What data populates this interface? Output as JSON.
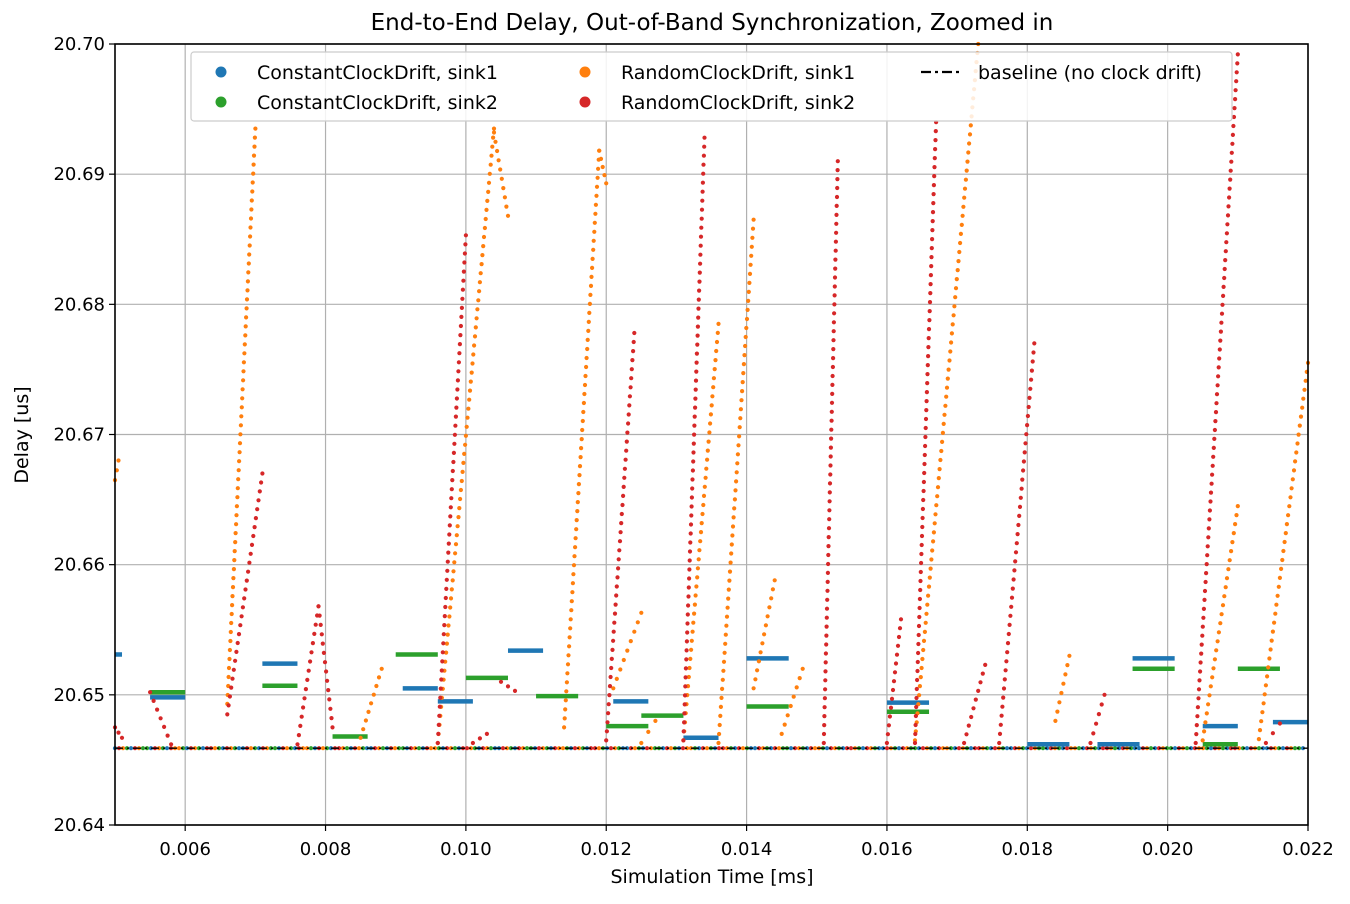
{
  "chart_data": {
    "type": "scatter",
    "title": "End-to-End Delay, Out-of-Band Synchronization, Zoomed in",
    "xlabel": "Simulation Time [ms]",
    "ylabel": "Delay [us]",
    "xlim": [
      0.005,
      0.022
    ],
    "ylim": [
      20.64,
      20.7
    ],
    "xticks": [
      "0.006",
      "0.008",
      "0.010",
      "0.012",
      "0.014",
      "0.016",
      "0.018",
      "0.020",
      "0.022"
    ],
    "yticks": [
      "20.64",
      "20.65",
      "20.66",
      "20.67",
      "20.68",
      "20.69",
      "20.70"
    ],
    "grid": true,
    "legend_position": "top",
    "baseline": {
      "name": "baseline (no clock drift)",
      "color": "#000000",
      "style": "dash-dot",
      "y": 20.6459
    },
    "series": [
      {
        "name": "ConstantClockDrift, sink1",
        "color": "#1f77b4",
        "segments": [
          {
            "x0": 0.005,
            "x1": 0.0051,
            "y": 20.6531
          },
          {
            "x0": 0.0055,
            "x1": 0.006,
            "y": 20.6498
          },
          {
            "x0": 0.0071,
            "x1": 0.0076,
            "y": 20.6524
          },
          {
            "x0": 0.0091,
            "x1": 0.0096,
            "y": 20.6505
          },
          {
            "x0": 0.0096,
            "x1": 0.0101,
            "y": 20.6495
          },
          {
            "x0": 0.0106,
            "x1": 0.0111,
            "y": 20.6534
          },
          {
            "x0": 0.0121,
            "x1": 0.0126,
            "y": 20.6495
          },
          {
            "x0": 0.0131,
            "x1": 0.0136,
            "y": 20.6467
          },
          {
            "x0": 0.014,
            "x1": 0.0146,
            "y": 20.6528
          },
          {
            "x0": 0.016,
            "x1": 0.0166,
            "y": 20.6494
          },
          {
            "x0": 0.018,
            "x1": 0.0186,
            "y": 20.6462
          },
          {
            "x0": 0.019,
            "x1": 0.0196,
            "y": 20.6462
          },
          {
            "x0": 0.0195,
            "x1": 0.0201,
            "y": 20.6528
          },
          {
            "x0": 0.0205,
            "x1": 0.021,
            "y": 20.6476
          },
          {
            "x0": 0.0215,
            "x1": 0.022,
            "y": 20.6479
          }
        ]
      },
      {
        "name": "ConstantClockDrift, sink2",
        "color": "#2ca02c",
        "segments": [
          {
            "x0": 0.0055,
            "x1": 0.006,
            "y": 20.6502
          },
          {
            "x0": 0.0071,
            "x1": 0.0076,
            "y": 20.6507
          },
          {
            "x0": 0.0081,
            "x1": 0.0086,
            "y": 20.6468
          },
          {
            "x0": 0.009,
            "x1": 0.0096,
            "y": 20.6531
          },
          {
            "x0": 0.01,
            "x1": 0.0106,
            "y": 20.6513
          },
          {
            "x0": 0.011,
            "x1": 0.0116,
            "y": 20.6499
          },
          {
            "x0": 0.012,
            "x1": 0.0126,
            "y": 20.6476
          },
          {
            "x0": 0.0125,
            "x1": 0.0131,
            "y": 20.6484
          },
          {
            "x0": 0.014,
            "x1": 0.0146,
            "y": 20.6491
          },
          {
            "x0": 0.016,
            "x1": 0.0166,
            "y": 20.6487
          },
          {
            "x0": 0.0195,
            "x1": 0.0201,
            "y": 20.652
          },
          {
            "x0": 0.0205,
            "x1": 0.021,
            "y": 20.6462
          },
          {
            "x0": 0.021,
            "x1": 0.0216,
            "y": 20.652
          }
        ]
      },
      {
        "name": "RandomClockDrift, sink1",
        "color": "#ff7f0e",
        "bursts": [
          {
            "x": [
              0.005,
              0.00505
            ],
            "y": [
              20.6665,
              20.668
            ]
          },
          {
            "x": [
              0.0066,
              0.007
            ],
            "y": [
              20.6493,
              20.6935
            ]
          },
          {
            "x": [
              0.0085,
              0.0088
            ],
            "y": [
              20.6467,
              20.652
            ]
          },
          {
            "x": [
              0.0096,
              0.0104
            ],
            "y": [
              20.6463,
              20.6935
            ]
          },
          {
            "x": [
              0.0104,
              0.0106
            ],
            "y": [
              20.6932,
              20.6868
            ]
          },
          {
            "x": [
              0.0114,
              0.0119
            ],
            "y": [
              20.6475,
              20.6918
            ]
          },
          {
            "x": [
              0.0119,
              0.012
            ],
            "y": [
              20.6918,
              20.6893
            ]
          },
          {
            "x": [
              0.0121,
              0.0125
            ],
            "y": [
              20.6505,
              20.6563
            ]
          },
          {
            "x": [
              0.0125,
              0.0127
            ],
            "y": [
              20.6463,
              20.648
            ]
          },
          {
            "x": [
              0.0131,
              0.0136
            ],
            "y": [
              20.6465,
              20.6785
            ]
          },
          {
            "x": [
              0.0136,
              0.0141
            ],
            "y": [
              20.6463,
              20.6865
            ]
          },
          {
            "x": [
              0.0141,
              0.0144
            ],
            "y": [
              20.6505,
              20.6588
            ]
          },
          {
            "x": [
              0.0145,
              0.0148
            ],
            "y": [
              20.647,
              20.652
            ]
          },
          {
            "x": [
              0.0164,
              0.0173
            ],
            "y": [
              20.6465,
              20.7
            ]
          },
          {
            "x": [
              0.0184,
              0.0186
            ],
            "y": [
              20.648,
              20.653
            ]
          },
          {
            "x": [
              0.0205,
              0.021
            ],
            "y": [
              20.6465,
              20.6645
            ]
          },
          {
            "x": [
              0.0213,
              0.022
            ],
            "y": [
              20.6466,
              20.6755
            ]
          }
        ]
      },
      {
        "name": "RandomClockDrift, sink2",
        "color": "#d62728",
        "bursts": [
          {
            "x": [
              0.005,
              0.0051
            ],
            "y": [
              20.6475,
              20.6467
            ]
          },
          {
            "x": [
              0.0055,
              0.0058
            ],
            "y": [
              20.6502,
              20.6462
            ]
          },
          {
            "x": [
              0.0066,
              0.0071
            ],
            "y": [
              20.6485,
              20.667
            ]
          },
          {
            "x": [
              0.0076,
              0.0079
            ],
            "y": [
              20.6462,
              20.6568
            ]
          },
          {
            "x": [
              0.0079,
              0.0081
            ],
            "y": [
              20.6568,
              20.6475
            ]
          },
          {
            "x": [
              0.0096,
              0.01
            ],
            "y": [
              20.6463,
              20.6853
            ]
          },
          {
            "x": [
              0.0101,
              0.0103
            ],
            "y": [
              20.6463,
              20.647
            ]
          },
          {
            "x": [
              0.0105,
              0.0107
            ],
            "y": [
              20.651,
              20.6503
            ]
          },
          {
            "x": [
              0.012,
              0.0124
            ],
            "y": [
              20.6465,
              20.6778
            ]
          },
          {
            "x": [
              0.0131,
              0.0134
            ],
            "y": [
              20.6465,
              20.6928
            ]
          },
          {
            "x": [
              0.0151,
              0.0153
            ],
            "y": [
              20.6463,
              20.691
            ]
          },
          {
            "x": [
              0.016,
              0.0162
            ],
            "y": [
              20.6463,
              20.6558
            ]
          },
          {
            "x": [
              0.0164,
              0.0167
            ],
            "y": [
              20.6463,
              20.694
            ]
          },
          {
            "x": [
              0.0171,
              0.0174
            ],
            "y": [
              20.6463,
              20.6523
            ]
          },
          {
            "x": [
              0.0176,
              0.0181
            ],
            "y": [
              20.6463,
              20.677
            ]
          },
          {
            "x": [
              0.0189,
              0.0191
            ],
            "y": [
              20.6463,
              20.65
            ]
          },
          {
            "x": [
              0.0204,
              0.021
            ],
            "y": [
              20.6463,
              20.6992
            ]
          },
          {
            "x": [
              0.0214,
              0.0216
            ],
            "y": [
              20.6463,
              20.6478
            ]
          }
        ]
      }
    ]
  }
}
